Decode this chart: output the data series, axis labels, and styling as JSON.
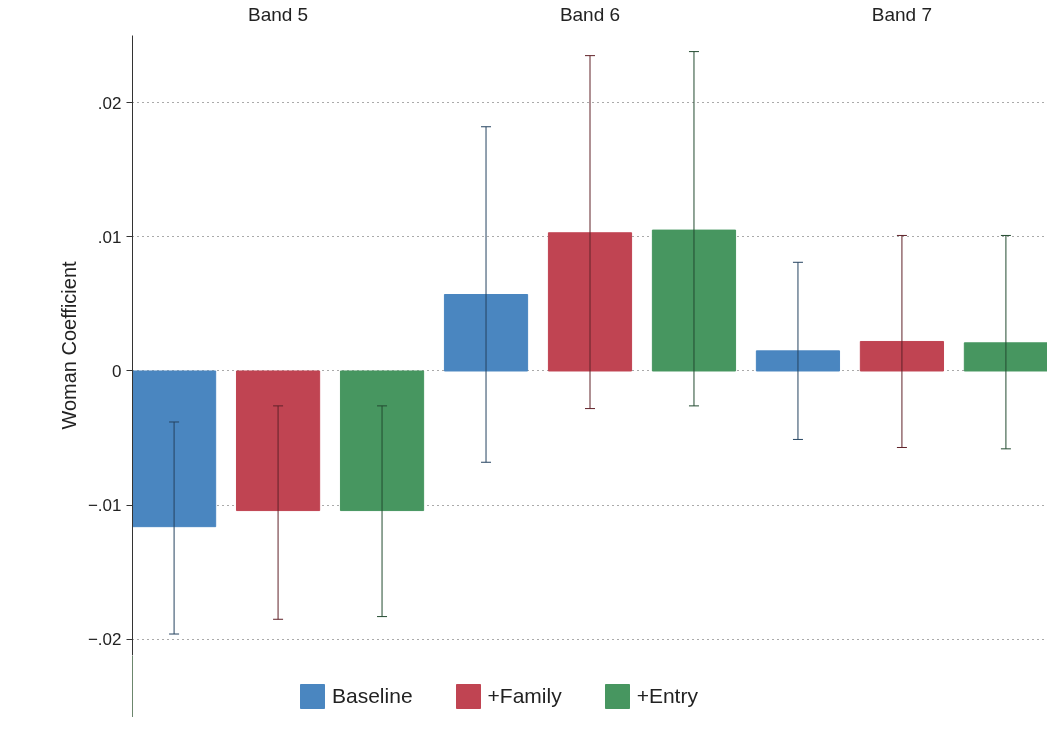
{
  "chart_data": {
    "type": "bar",
    "ylabel": "Woman Coefficient",
    "categories": [
      "Band 5",
      "Band 6",
      "Band 7"
    ],
    "ylim": [
      -0.0212,
      0.025
    ],
    "yticks": [
      {
        "value": -0.02,
        "label": "−.02"
      },
      {
        "value": -0.01,
        "label": "−.01"
      },
      0,
      {
        "value": 0.01,
        "label": ".01"
      },
      {
        "value": 0.02,
        "label": ".02"
      }
    ],
    "grid": "y",
    "legend": "bottom",
    "series": [
      {
        "name": "Baseline",
        "color": "#4a86c0",
        "values": [
          -0.0116,
          0.0057,
          0.0015
        ],
        "errors": [
          [
            -0.0196,
            -0.0038
          ],
          [
            -0.0068,
            0.0182
          ],
          [
            -0.0051,
            0.0081
          ]
        ]
      },
      {
        "name": "+Family",
        "color": "#c04452",
        "values": [
          -0.0104,
          0.0103,
          0.0022
        ],
        "errors": [
          [
            -0.0185,
            -0.0026
          ],
          [
            -0.0028,
            0.0235
          ],
          [
            -0.0057,
            0.0101
          ]
        ]
      },
      {
        "name": "+Entry",
        "color": "#479660",
        "values": [
          -0.0104,
          0.0105,
          0.0021
        ],
        "errors": [
          [
            -0.0183,
            -0.0026
          ],
          [
            -0.0026,
            0.0238
          ],
          [
            -0.0058,
            0.0101
          ]
        ]
      }
    ]
  }
}
